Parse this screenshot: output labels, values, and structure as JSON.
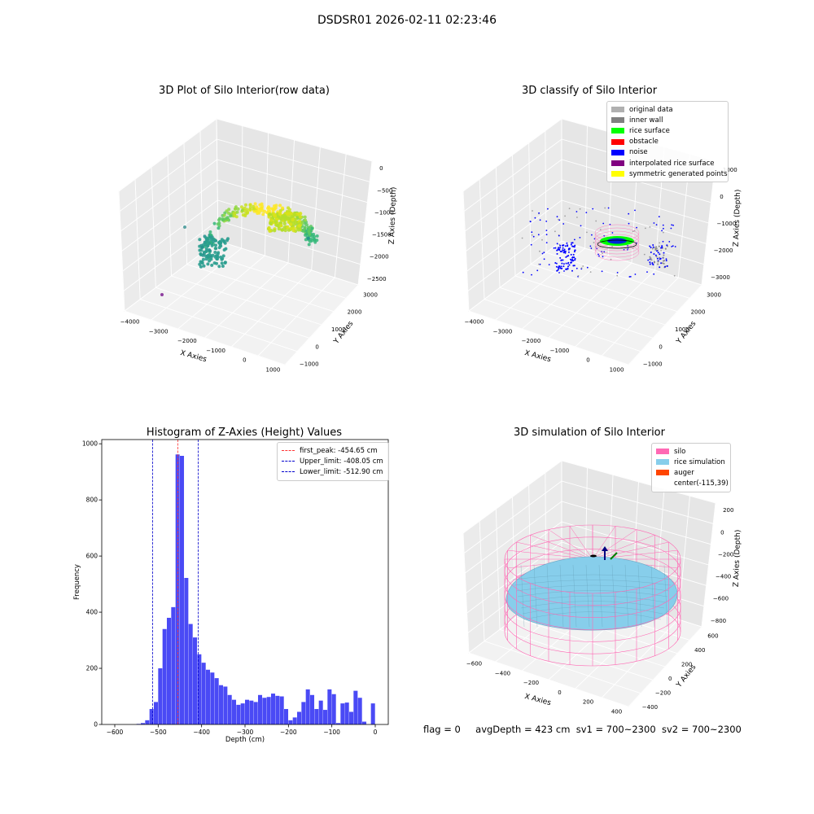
{
  "figure": {
    "suptitle": "DSDSR01 2026-02-11 02:23:46"
  },
  "chart_data": [
    {
      "type": "scatter",
      "projection": "3d",
      "title": "3D Plot of Silo Interior(row data)",
      "xlabel": "X Axies",
      "ylabel": "Y Axies",
      "zlabel": "Z Axies (Depth)",
      "x_ticks": [
        "−4000",
        "−3000",
        "−2000",
        "−1000",
        "0",
        "1000"
      ],
      "y_ticks": [
        "−1000",
        "0",
        "1000",
        "2000",
        "3000"
      ],
      "z_ticks": [
        "−2500",
        "−2000",
        "−1500",
        "−1000",
        "−500",
        "0"
      ],
      "colormap": "viridis",
      "grid": true
    },
    {
      "type": "scatter",
      "projection": "3d",
      "title": "3D classify of Silo Interior",
      "xlabel": "X Axies",
      "ylabel": "Y Axies",
      "zlabel": "Z Axies (Depth)",
      "x_ticks": [
        "−4000",
        "−3000",
        "−2000",
        "−1000",
        "0",
        "1000"
      ],
      "y_ticks": [
        "−1000",
        "0",
        "1000",
        "2000",
        "3000"
      ],
      "z_ticks": [
        "−3000",
        "−2000",
        "−1000",
        "0",
        "1000"
      ],
      "legend_position": "top-right",
      "legend": [
        {
          "label": "original data",
          "color": "#b0b0b0"
        },
        {
          "label": "inner wall",
          "color": "#808080"
        },
        {
          "label": "rice surface",
          "color": "#00ff00"
        },
        {
          "label": "obstacle",
          "color": "#ff0000"
        },
        {
          "label": "noise",
          "color": "#0000ff"
        },
        {
          "label": "interpolated rice surface",
          "color": "#800080"
        },
        {
          "label": "symmetric generated points",
          "color": "#ffff00"
        }
      ],
      "grid": true
    },
    {
      "type": "bar",
      "title": "Histogram of Z-Axies (Height) Values",
      "xlabel": "Depth (cm)",
      "ylabel": "Frequency",
      "xlim": [
        -630,
        30
      ],
      "ylim": [
        0,
        1015
      ],
      "x_ticks": [
        -600,
        -500,
        -400,
        -300,
        -200,
        -100,
        0
      ],
      "y_ticks": [
        0,
        200,
        400,
        600,
        800,
        1000
      ],
      "bar_color": "#4a4af5",
      "bins": [
        {
          "x0": -550,
          "x1": -540,
          "y": 2
        },
        {
          "x0": -540,
          "x1": -530,
          "y": 5
        },
        {
          "x0": -530,
          "x1": -520,
          "y": 15
        },
        {
          "x0": -520,
          "x1": -510,
          "y": 55
        },
        {
          "x0": -510,
          "x1": -500,
          "y": 80
        },
        {
          "x0": -500,
          "x1": -490,
          "y": 200
        },
        {
          "x0": -490,
          "x1": -480,
          "y": 340
        },
        {
          "x0": -480,
          "x1": -470,
          "y": 380
        },
        {
          "x0": -470,
          "x1": -460,
          "y": 418
        },
        {
          "x0": -460,
          "x1": -450,
          "y": 962
        },
        {
          "x0": -450,
          "x1": -440,
          "y": 957
        },
        {
          "x0": -440,
          "x1": -430,
          "y": 522
        },
        {
          "x0": -430,
          "x1": -420,
          "y": 358
        },
        {
          "x0": -420,
          "x1": -410,
          "y": 310
        },
        {
          "x0": -410,
          "x1": -400,
          "y": 250
        },
        {
          "x0": -400,
          "x1": -390,
          "y": 220
        },
        {
          "x0": -390,
          "x1": -380,
          "y": 195
        },
        {
          "x0": -380,
          "x1": -370,
          "y": 185
        },
        {
          "x0": -370,
          "x1": -360,
          "y": 165
        },
        {
          "x0": -360,
          "x1": -350,
          "y": 140
        },
        {
          "x0": -350,
          "x1": -340,
          "y": 135
        },
        {
          "x0": -340,
          "x1": -330,
          "y": 105
        },
        {
          "x0": -330,
          "x1": -320,
          "y": 88
        },
        {
          "x0": -320,
          "x1": -310,
          "y": 70
        },
        {
          "x0": -310,
          "x1": -300,
          "y": 75
        },
        {
          "x0": -300,
          "x1": -290,
          "y": 88
        },
        {
          "x0": -290,
          "x1": -280,
          "y": 85
        },
        {
          "x0": -280,
          "x1": -270,
          "y": 80
        },
        {
          "x0": -270,
          "x1": -260,
          "y": 105
        },
        {
          "x0": -260,
          "x1": -250,
          "y": 95
        },
        {
          "x0": -250,
          "x1": -240,
          "y": 98
        },
        {
          "x0": -240,
          "x1": -230,
          "y": 110
        },
        {
          "x0": -230,
          "x1": -220,
          "y": 102
        },
        {
          "x0": -220,
          "x1": -210,
          "y": 100
        },
        {
          "x0": -210,
          "x1": -200,
          "y": 55
        },
        {
          "x0": -200,
          "x1": -190,
          "y": 15
        },
        {
          "x0": -190,
          "x1": -180,
          "y": 25
        },
        {
          "x0": -180,
          "x1": -170,
          "y": 45
        },
        {
          "x0": -170,
          "x1": -160,
          "y": 80
        },
        {
          "x0": -160,
          "x1": -150,
          "y": 125
        },
        {
          "x0": -150,
          "x1": -140,
          "y": 105
        },
        {
          "x0": -140,
          "x1": -130,
          "y": 55
        },
        {
          "x0": -130,
          "x1": -120,
          "y": 85
        },
        {
          "x0": -120,
          "x1": -110,
          "y": 52
        },
        {
          "x0": -110,
          "x1": -100,
          "y": 125
        },
        {
          "x0": -100,
          "x1": -90,
          "y": 108
        },
        {
          "x0": -90,
          "x1": -80,
          "y": 5
        },
        {
          "x0": -80,
          "x1": -70,
          "y": 75
        }
      ],
      "vlines": [
        {
          "label": "first_peak: -454.65 cm",
          "x": -454.65,
          "color": "#ff3333"
        },
        {
          "label": "Upper_limit: -408.05 cm",
          "x": -408.05,
          "color": "#0000cc"
        },
        {
          "label": "Lower_limit: -512.90 cm",
          "x": -512.9,
          "color": "#0000cc"
        }
      ],
      "legend_position": "top-right",
      "grid": false
    },
    {
      "type": "surface",
      "projection": "3d",
      "title": "3D simulation of Silo Interior",
      "xlabel": "X Axies",
      "ylabel": "Y Axies",
      "zlabel": "Z Axies (Depth)",
      "x_ticks": [
        "−600",
        "−400",
        "−200",
        "0",
        "200",
        "400"
      ],
      "y_ticks": [
        "−400",
        "−200",
        "0",
        "200",
        "400",
        "600"
      ],
      "z_ticks": [
        "−800",
        "−600",
        "−400",
        "−200",
        "0",
        "200"
      ],
      "legend_position": "top-right",
      "legend": [
        {
          "label": "silo",
          "color": "#ff69b4"
        },
        {
          "label": "rice simulation",
          "color": "#87ceeb"
        },
        {
          "label": "auger",
          "color": "#ff4500"
        },
        {
          "label": "center(-115,39)",
          "color": ""
        }
      ],
      "grid": true
    }
  ],
  "status": {
    "flag": "flag = 0",
    "avg_depth": "avgDepth = 423 cm",
    "sv1": "sv1 = 700~2300",
    "sv2": "sv2 = 700~2300"
  }
}
